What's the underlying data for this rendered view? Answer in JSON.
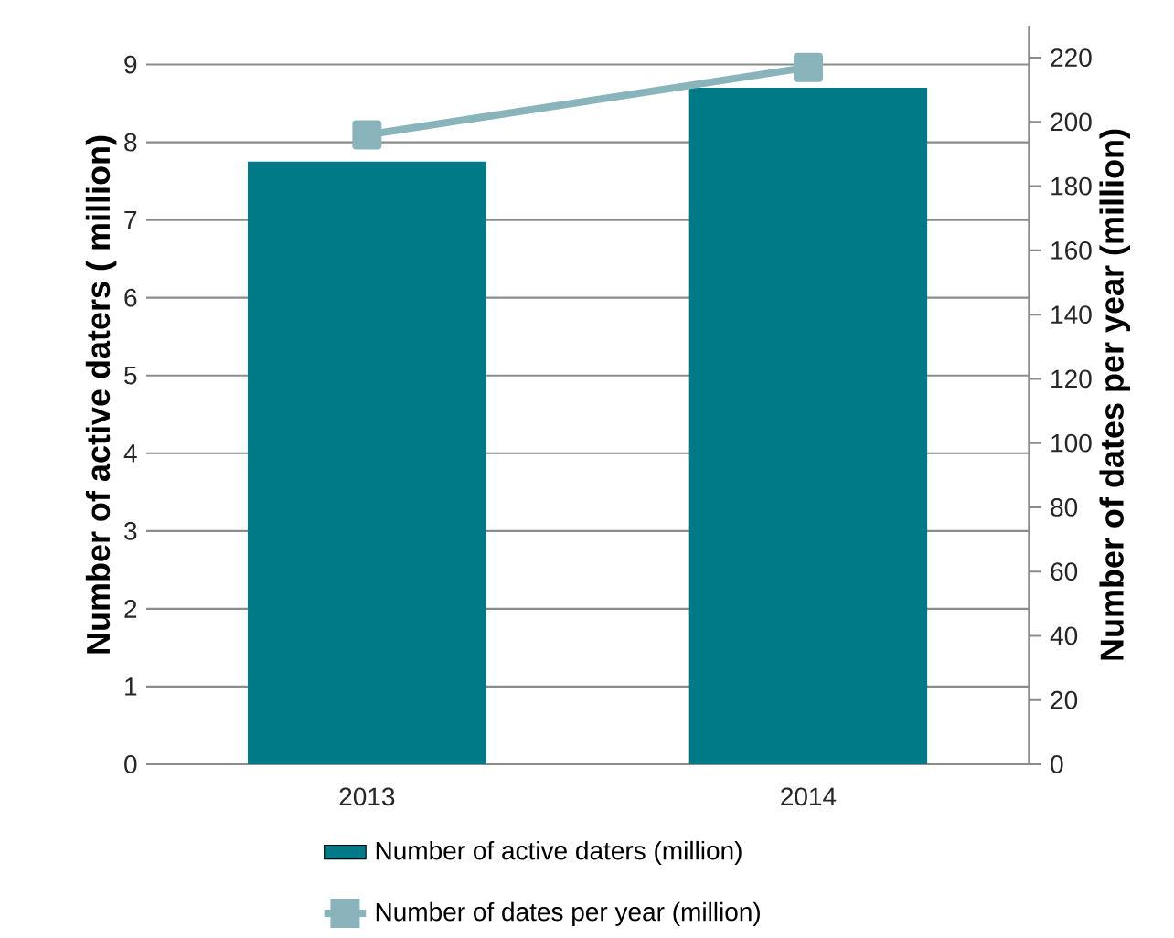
{
  "chart_data": {
    "type": "bar",
    "categories": [
      "2013",
      "2014"
    ],
    "ylabel": "Number of active daters ( million)",
    "y2label": "Number of dates per year (million)",
    "ylim": [
      0,
      9.5
    ],
    "yticks": [
      0,
      1,
      2,
      3,
      4,
      5,
      6,
      7,
      8,
      9
    ],
    "y2lim": [
      0,
      230
    ],
    "y2ticks": [
      0,
      20,
      40,
      60,
      80,
      100,
      120,
      140,
      160,
      180,
      200,
      220
    ],
    "grid": "y",
    "legend": "bottom",
    "series": [
      {
        "name": "Number of active daters (million)",
        "color": "#007a87",
        "values": [
          7.75,
          8.7
        ]
      },
      {
        "name": "Number of dates per year (million)",
        "type": "line",
        "axis": "y2",
        "color": "#8ab4bc",
        "marker": "square",
        "values": [
          196,
          217
        ]
      }
    ]
  }
}
